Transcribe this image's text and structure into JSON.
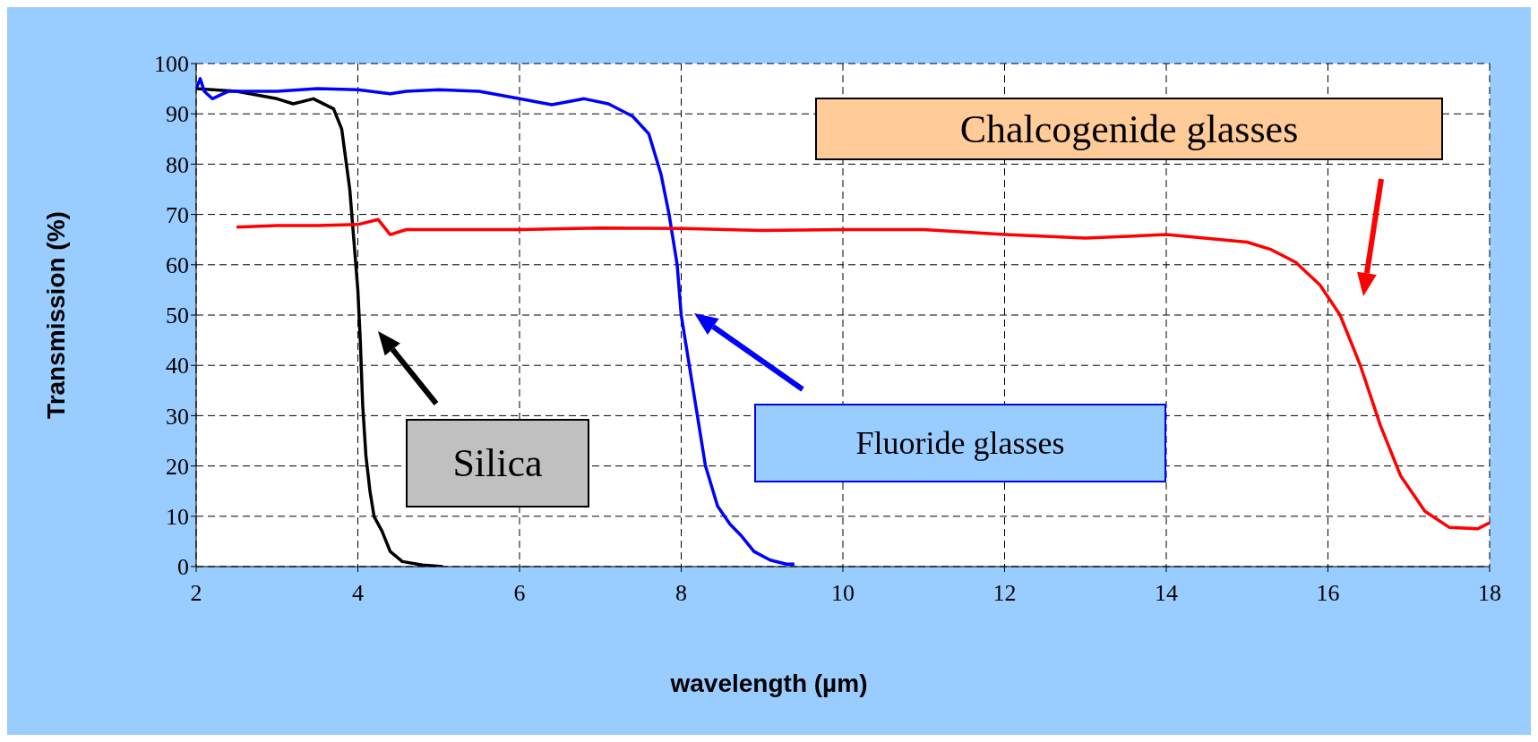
{
  "chart_data": {
    "type": "line",
    "xlabel": "wavelength (µm)",
    "ylabel": "Transmission (%)",
    "xlim": [
      2,
      18
    ],
    "xticks": [
      2,
      4,
      6,
      8,
      10,
      12,
      14,
      16,
      18
    ],
    "ylim": [
      0,
      100
    ],
    "yticks": [
      0,
      10,
      20,
      30,
      40,
      50,
      60,
      70,
      80,
      90,
      100
    ],
    "grid": true,
    "legend": false,
    "marker": "none",
    "line_style": "solid",
    "series": [
      {
        "color": "#000000",
        "x": [
          2,
          2.5,
          3,
          3.2,
          3.45,
          3.7,
          3.8,
          3.9,
          3.95,
          4,
          4.03,
          4.06,
          4.1,
          4.15,
          4.2,
          4.3,
          4.4,
          4.55,
          4.8,
          5.05
        ],
        "values": [
          95,
          94.5,
          93,
          92,
          93,
          91,
          87,
          75,
          65,
          55,
          45,
          32,
          22,
          15,
          10,
          7,
          3,
          1,
          0.3,
          0
        ]
      },
      {
        "color": "#0000ff",
        "x": [
          2,
          2.05,
          2.1,
          2.2,
          2.4,
          3,
          3.5,
          4,
          4.4,
          4.6,
          5,
          5.5,
          6,
          6.4,
          6.8,
          7.1,
          7.4,
          7.6,
          7.75,
          7.85,
          7.95,
          8,
          8.1,
          8.2,
          8.3,
          8.45,
          8.6,
          8.75,
          8.9,
          9.1,
          9.3,
          9.4
        ],
        "values": [
          95,
          97,
          94.5,
          93,
          94.5,
          94.5,
          95,
          94.8,
          94,
          94.5,
          94.8,
          94.5,
          93,
          91.8,
          93,
          92,
          89.5,
          86,
          78,
          70,
          60,
          50,
          40,
          30,
          20,
          12,
          8.5,
          6,
          3,
          1.3,
          0.5,
          0.5
        ]
      },
      {
        "color": "#ff0000",
        "x": [
          2.5,
          3,
          3.5,
          4,
          4.25,
          4.4,
          4.6,
          5,
          6,
          7,
          8,
          9,
          10,
          11,
          12,
          13,
          14,
          15,
          15.3,
          15.6,
          15.9,
          16.15,
          16.4,
          16.65,
          16.9,
          17.2,
          17.5,
          17.85,
          18
        ],
        "values": [
          67.5,
          67.8,
          67.8,
          68,
          69,
          66,
          67,
          67,
          67,
          67.3,
          67.2,
          66.8,
          67,
          67,
          66,
          65.3,
          66,
          64.5,
          63,
          60.5,
          56,
          50,
          40,
          28,
          18,
          11,
          7.8,
          7.5,
          8.7
        ]
      }
    ],
    "annotations": [
      "Silica",
      "Fluoride glasses",
      "Chalcogenide glasses"
    ]
  }
}
